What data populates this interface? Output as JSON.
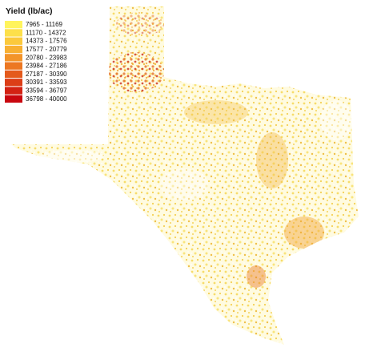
{
  "legend": {
    "title": "Yield (lb/ac)",
    "items": [
      {
        "label": "7965 - 11169",
        "color": "#fff45c"
      },
      {
        "label": "11170 - 14372",
        "color": "#fde04a"
      },
      {
        "label": "14373 - 17576",
        "color": "#fbc93c"
      },
      {
        "label": "17577 - 20779",
        "color": "#f8b032"
      },
      {
        "label": "20780 - 23983",
        "color": "#f3942a"
      },
      {
        "label": "23984 - 27186",
        "color": "#ec7722"
      },
      {
        "label": "27187 - 30390",
        "color": "#e45a1c"
      },
      {
        "label": "30391 - 33593",
        "color": "#dc3e17"
      },
      {
        "label": "33594 - 36797",
        "color": "#d32213"
      },
      {
        "label": "36798 - 40000",
        "color": "#c9070f"
      }
    ]
  }
}
